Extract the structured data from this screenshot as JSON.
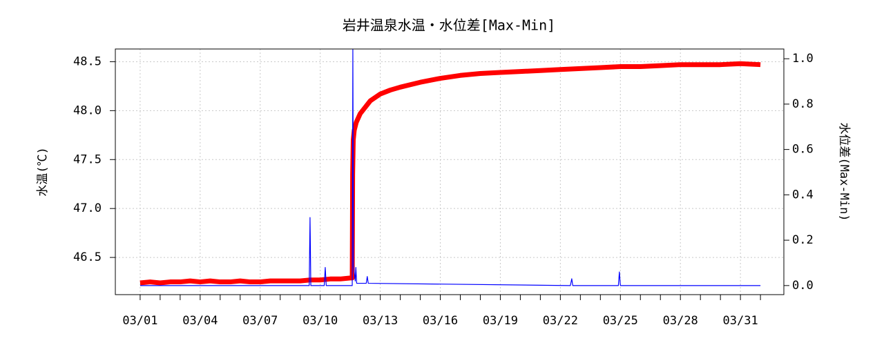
{
  "chart_data": {
    "type": "line",
    "title": "岩井温泉水温・水位差[Max-Min]",
    "ylabel": "水温(℃)",
    "y2label": "水位差(Max-Min)",
    "xlim": [
      -0.24,
      33.17
    ],
    "ylim": [
      46.12,
      48.63
    ],
    "y2lim": [
      -0.04,
      1.043
    ],
    "xticks": [
      {
        "value": 1,
        "label": "03/01"
      },
      {
        "value": 4,
        "label": "03/04"
      },
      {
        "value": 7,
        "label": "03/07"
      },
      {
        "value": 10,
        "label": "03/10"
      },
      {
        "value": 13,
        "label": "03/13"
      },
      {
        "value": 16,
        "label": "03/16"
      },
      {
        "value": 19,
        "label": "03/19"
      },
      {
        "value": 22,
        "label": "03/22"
      },
      {
        "value": 25,
        "label": "03/25"
      },
      {
        "value": 28,
        "label": "03/28"
      },
      {
        "value": 31,
        "label": "03/31"
      }
    ],
    "xminor_ticks": [
      1,
      2,
      3,
      4,
      5,
      6,
      7,
      8,
      9,
      10,
      11,
      12,
      13,
      14,
      15,
      16,
      17,
      18,
      19,
      20,
      21,
      22,
      23,
      24,
      25,
      26,
      27,
      28,
      29,
      30,
      31,
      32
    ],
    "yticks": [
      46.5,
      {
        "value": 47,
        "label": "47.0"
      },
      47.5,
      {
        "value": 48,
        "label": "48.0"
      },
      48.5
    ],
    "y2ticks": [
      {
        "value": 0,
        "label": "0.0"
      },
      0.2,
      0.4,
      0.6,
      0.8,
      {
        "value": 1,
        "label": "1.0"
      }
    ],
    "grid": true,
    "series": [
      {
        "name": "水温",
        "color": "#ff0000",
        "axis": "y",
        "x": [
          1,
          1.5,
          2,
          2.5,
          3,
          3.5,
          4,
          4.5,
          5,
          5.5,
          6,
          6.5,
          7,
          7.5,
          8,
          8.5,
          9,
          9.5,
          10,
          10.5,
          11,
          11.5,
          11.6,
          11.62,
          11.65,
          11.7,
          11.8,
          12,
          12.5,
          13,
          13.5,
          14,
          15,
          16,
          17,
          18,
          19,
          20,
          21,
          22,
          23,
          24,
          25,
          26,
          27,
          28,
          29,
          30,
          31,
          32
        ],
        "values": [
          46.24,
          46.25,
          46.24,
          46.25,
          46.25,
          46.26,
          46.25,
          46.26,
          46.25,
          46.25,
          46.26,
          46.25,
          46.25,
          46.26,
          46.26,
          46.26,
          46.26,
          46.27,
          46.27,
          46.28,
          46.28,
          46.29,
          46.29,
          47.35,
          47.7,
          47.8,
          47.88,
          47.97,
          48.1,
          48.17,
          48.21,
          48.24,
          48.29,
          48.33,
          48.36,
          48.38,
          48.39,
          48.4,
          48.41,
          48.42,
          48.43,
          48.44,
          48.45,
          48.45,
          48.46,
          48.47,
          48.47,
          48.47,
          48.48,
          48.47
        ]
      },
      {
        "name": "水位差",
        "color": "#0000ff",
        "axis": "y2",
        "x": [
          1,
          9.45,
          9.49,
          9.53,
          10.2,
          10.25,
          10.3,
          11.6,
          11.63,
          11.66,
          11.75,
          11.78,
          11.82,
          12.3,
          12.35,
          12.4,
          22.5,
          22.57,
          22.62,
          24.9,
          24.95,
          25.0,
          32
        ],
        "values": [
          0,
          0,
          0.3,
          0,
          0,
          0.08,
          0,
          0,
          1.04,
          0.09,
          0.02,
          0.08,
          0.01,
          0.01,
          0.04,
          0.01,
          0,
          0.03,
          0,
          0,
          0.06,
          0,
          0
        ]
      }
    ]
  }
}
